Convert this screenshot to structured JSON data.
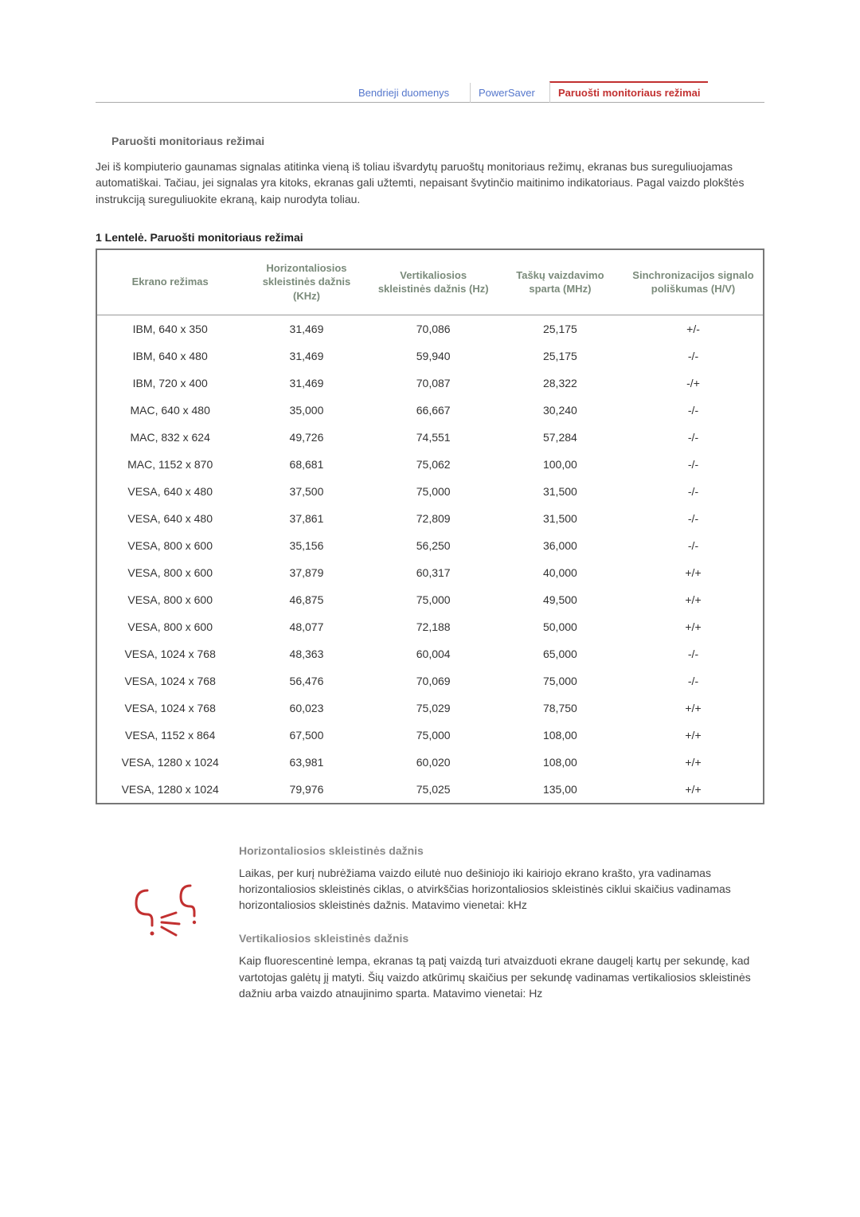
{
  "nav": {
    "tab1": "Bendrieji duomenys",
    "tab2": "PowerSaver",
    "tab3": "Paruošti monitoriaus režimai"
  },
  "section1": {
    "title": "Paruošti monitoriaus režimai",
    "paragraph": "Jei iš kompiuterio gaunamas signalas atitinka vieną iš toliau išvardytų paruoštų monitoriaus režimų, ekranas bus sureguliuojamas automatiškai. Tačiau, jei signalas yra kitoks, ekranas gali užtemti, nepaisant švytinčio maitinimo indikatoriaus. Pagal vaizdo plokštės instrukciją sureguliuokite ekraną, kaip nurodyta toliau."
  },
  "table": {
    "caption": "1 Lentelė. Paruošti monitoriaus režimai",
    "headers": {
      "mode": "Ekrano režimas",
      "h": "Horizontaliosios skleistinės dažnis (KHz)",
      "v": "Vertikaliosios skleistinės dažnis (Hz)",
      "p": "Taškų vaizdavimo sparta (MHz)",
      "s": "Sinchronizacijos signalo poliškumas (H/V)"
    },
    "rows": [
      {
        "mode": "IBM, 640 x 350",
        "h": "31,469",
        "v": "70,086",
        "p": "25,175",
        "s": "+/-"
      },
      {
        "mode": "IBM, 640 x 480",
        "h": "31,469",
        "v": "59,940",
        "p": "25,175",
        "s": "-/-"
      },
      {
        "mode": "IBM, 720 x 400",
        "h": "31,469",
        "v": "70,087",
        "p": "28,322",
        "s": "-/+"
      },
      {
        "mode": "MAC, 640 x 480",
        "h": "35,000",
        "v": "66,667",
        "p": "30,240",
        "s": "-/-"
      },
      {
        "mode": "MAC, 832 x 624",
        "h": "49,726",
        "v": "74,551",
        "p": "57,284",
        "s": "-/-"
      },
      {
        "mode": "MAC, 1152 x 870",
        "h": "68,681",
        "v": "75,062",
        "p": "100,00",
        "s": "-/-"
      },
      {
        "mode": "VESA, 640 x 480",
        "h": "37,500",
        "v": "75,000",
        "p": "31,500",
        "s": "-/-"
      },
      {
        "mode": "VESA, 640 x 480",
        "h": "37,861",
        "v": "72,809",
        "p": "31,500",
        "s": "-/-"
      },
      {
        "mode": "VESA, 800 x 600",
        "h": "35,156",
        "v": "56,250",
        "p": "36,000",
        "s": "-/-"
      },
      {
        "mode": "VESA, 800 x 600",
        "h": "37,879",
        "v": "60,317",
        "p": "40,000",
        "s": "+/+"
      },
      {
        "mode": "VESA, 800 x 600",
        "h": "46,875",
        "v": "75,000",
        "p": "49,500",
        "s": "+/+"
      },
      {
        "mode": "VESA, 800 x 600",
        "h": "48,077",
        "v": "72,188",
        "p": "50,000",
        "s": "+/+"
      },
      {
        "mode": "VESA, 1024 x 768",
        "h": "48,363",
        "v": "60,004",
        "p": "65,000",
        "s": "-/-"
      },
      {
        "mode": "VESA, 1024 x 768",
        "h": "56,476",
        "v": "70,069",
        "p": "75,000",
        "s": "-/-"
      },
      {
        "mode": "VESA, 1024 x 768",
        "h": "60,023",
        "v": "75,029",
        "p": "78,750",
        "s": "+/+"
      },
      {
        "mode": "VESA, 1152 x 864",
        "h": "67,500",
        "v": "75,000",
        "p": "108,00",
        "s": "+/+"
      },
      {
        "mode": "VESA, 1280 x 1024",
        "h": "63,981",
        "v": "60,020",
        "p": "108,00",
        "s": "+/+"
      },
      {
        "mode": "VESA, 1280 x 1024",
        "h": "79,976",
        "v": "75,025",
        "p": "135,00",
        "s": "+/+"
      }
    ]
  },
  "info": {
    "h1": {
      "title": "Horizontaliosios skleistinės dažnis",
      "text": "Laikas, per kurį nubrėžiama vaizdo eilutė nuo dešiniojo iki kairiojo ekrano krašto, yra vadinamas horizontaliosios skleistinės ciklas, o atvirkščias horizontaliosios skleistinės ciklui skaičius vadinamas horizontaliosios skleistinės dažnis. Matavimo vienetai: kHz"
    },
    "h2": {
      "title": "Vertikaliosios skleistinės dažnis",
      "text": "Kaip fluorescentinė lempa, ekranas tą patį vaizdą turi atvaizduoti ekrane daugelį kartų per sekundę, kad vartotojas galėtų jį matyti. Šių vaizdo atkūrimų skaičius per sekundę vadinamas vertikaliosios skleistinės dažniu arba vaizdo atnaujinimo sparta. Matavimo vienetai: Hz"
    }
  }
}
